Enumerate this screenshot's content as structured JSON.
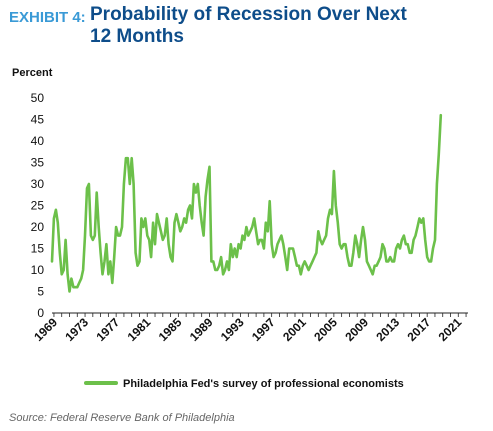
{
  "header": {
    "exhibit_label": "EXHIBIT 4:",
    "title": "Probability of Recession Over Next 12 Months"
  },
  "source": "Source: Federal Reserve Bank of Philadelphia",
  "colors": {
    "line": "#6cc04a",
    "exhibit": "#3a9ad6",
    "title": "#0e4d8a",
    "axis": "#222222"
  },
  "chart_data": {
    "type": "line",
    "ylabel": "Percent",
    "xlabel": "",
    "ylim": [
      0,
      50
    ],
    "yticks": [
      0,
      5,
      10,
      15,
      20,
      25,
      30,
      35,
      40,
      45,
      50
    ],
    "xlim": [
      1968.75,
      2022.25
    ],
    "xticks": [
      1969,
      1973,
      1977,
      1981,
      1985,
      1989,
      1993,
      1997,
      2001,
      2005,
      2009,
      2013,
      2017,
      2021
    ],
    "grid": false,
    "legend": "bottom",
    "series": [
      {
        "name": "Philadelphia Fed's survey of professional economists",
        "points": [
          [
            1968.75,
            12
          ],
          [
            1969.0,
            22
          ],
          [
            1969.25,
            24
          ],
          [
            1969.5,
            21
          ],
          [
            1969.75,
            14
          ],
          [
            1970.0,
            9
          ],
          [
            1970.25,
            10
          ],
          [
            1970.5,
            17
          ],
          [
            1970.75,
            9
          ],
          [
            1971.0,
            5
          ],
          [
            1971.25,
            8
          ],
          [
            1971.5,
            6
          ],
          [
            1971.75,
            6
          ],
          [
            1972.0,
            6
          ],
          [
            1972.25,
            7
          ],
          [
            1972.5,
            8
          ],
          [
            1972.75,
            10
          ],
          [
            1973.0,
            18
          ],
          [
            1973.25,
            29
          ],
          [
            1973.5,
            30
          ],
          [
            1973.75,
            18
          ],
          [
            1974.0,
            17
          ],
          [
            1974.25,
            18
          ],
          [
            1974.5,
            28
          ],
          [
            1974.75,
            20
          ],
          [
            1975.0,
            14
          ],
          [
            1975.25,
            9
          ],
          [
            1975.5,
            12
          ],
          [
            1975.75,
            16
          ],
          [
            1976.0,
            9
          ],
          [
            1976.25,
            12
          ],
          [
            1976.5,
            7
          ],
          [
            1976.75,
            13
          ],
          [
            1977.0,
            20
          ],
          [
            1977.25,
            18
          ],
          [
            1977.5,
            18
          ],
          [
            1977.75,
            20
          ],
          [
            1978.0,
            30
          ],
          [
            1978.25,
            36
          ],
          [
            1978.5,
            36
          ],
          [
            1978.75,
            30
          ],
          [
            1979.0,
            36
          ],
          [
            1979.25,
            30
          ],
          [
            1979.5,
            14
          ],
          [
            1979.75,
            11
          ],
          [
            1980.0,
            12
          ],
          [
            1980.25,
            22
          ],
          [
            1980.5,
            20
          ],
          [
            1980.75,
            22
          ],
          [
            1981.0,
            18
          ],
          [
            1981.25,
            17
          ],
          [
            1981.5,
            13
          ],
          [
            1981.75,
            21
          ],
          [
            1982.0,
            16
          ],
          [
            1982.25,
            23
          ],
          [
            1982.5,
            21
          ],
          [
            1982.75,
            19
          ],
          [
            1983.0,
            17
          ],
          [
            1983.25,
            18
          ],
          [
            1983.5,
            22
          ],
          [
            1983.75,
            16
          ],
          [
            1984.0,
            13
          ],
          [
            1984.25,
            12
          ],
          [
            1984.5,
            21
          ],
          [
            1984.75,
            23
          ],
          [
            1985.0,
            21
          ],
          [
            1985.25,
            19
          ],
          [
            1985.5,
            20
          ],
          [
            1985.75,
            22
          ],
          [
            1986.0,
            21
          ],
          [
            1986.25,
            24
          ],
          [
            1986.5,
            25
          ],
          [
            1986.75,
            22
          ],
          [
            1987.0,
            30
          ],
          [
            1987.25,
            28
          ],
          [
            1987.5,
            30
          ],
          [
            1987.75,
            25
          ],
          [
            1988.0,
            21
          ],
          [
            1988.25,
            18
          ],
          [
            1988.5,
            27
          ],
          [
            1988.75,
            31
          ],
          [
            1989.0,
            34
          ],
          [
            1989.25,
            12
          ],
          [
            1989.5,
            12
          ],
          [
            1989.75,
            10
          ],
          [
            1990.0,
            10
          ],
          [
            1990.25,
            11
          ],
          [
            1990.5,
            13
          ],
          [
            1990.75,
            9
          ],
          [
            1991.0,
            10
          ],
          [
            1991.25,
            12
          ],
          [
            1991.5,
            10
          ],
          [
            1991.75,
            16
          ],
          [
            1992.0,
            13
          ],
          [
            1992.25,
            15
          ],
          [
            1992.5,
            13
          ],
          [
            1992.75,
            16
          ],
          [
            1993.0,
            15
          ],
          [
            1993.25,
            18
          ],
          [
            1993.5,
            17
          ],
          [
            1993.75,
            20
          ],
          [
            1994.0,
            18
          ],
          [
            1994.25,
            19
          ],
          [
            1994.5,
            20
          ],
          [
            1994.75,
            22
          ],
          [
            1995.0,
            19
          ],
          [
            1995.25,
            16
          ],
          [
            1995.5,
            17
          ],
          [
            1995.75,
            17
          ],
          [
            1996.0,
            15
          ],
          [
            1996.25,
            21
          ],
          [
            1996.5,
            19
          ],
          [
            1996.75,
            26
          ],
          [
            1997.0,
            16
          ],
          [
            1997.25,
            13
          ],
          [
            1997.5,
            14
          ],
          [
            1997.75,
            16
          ],
          [
            1998.0,
            17
          ],
          [
            1998.25,
            18
          ],
          [
            1998.5,
            16
          ],
          [
            1998.75,
            13
          ],
          [
            1999.0,
            10
          ],
          [
            1999.25,
            15
          ],
          [
            1999.5,
            15
          ],
          [
            1999.75,
            15
          ],
          [
            2000.0,
            13
          ],
          [
            2000.25,
            11
          ],
          [
            2000.5,
            11
          ],
          [
            2000.75,
            9
          ],
          [
            2001.0,
            11
          ],
          [
            2001.25,
            12
          ],
          [
            2001.5,
            11
          ],
          [
            2001.75,
            10
          ],
          [
            2002.0,
            11
          ],
          [
            2002.25,
            12
          ],
          [
            2002.5,
            13
          ],
          [
            2002.75,
            14
          ],
          [
            2003.0,
            19
          ],
          [
            2003.25,
            17
          ],
          [
            2003.5,
            16
          ],
          [
            2003.75,
            17
          ],
          [
            2004.0,
            18
          ],
          [
            2004.25,
            22
          ],
          [
            2004.5,
            24
          ],
          [
            2004.75,
            23
          ],
          [
            2005.0,
            33
          ],
          [
            2005.25,
            25
          ],
          [
            2005.5,
            21
          ],
          [
            2005.75,
            16
          ],
          [
            2006.0,
            15
          ],
          [
            2006.25,
            16
          ],
          [
            2006.5,
            16
          ],
          [
            2006.75,
            13
          ],
          [
            2007.0,
            11
          ],
          [
            2007.25,
            11
          ],
          [
            2007.5,
            14
          ],
          [
            2007.75,
            18
          ],
          [
            2008.0,
            16
          ],
          [
            2008.25,
            13
          ],
          [
            2008.5,
            17
          ],
          [
            2008.75,
            20
          ],
          [
            2009.0,
            17
          ],
          [
            2009.25,
            12
          ],
          [
            2009.5,
            11
          ],
          [
            2009.75,
            10
          ],
          [
            2010.0,
            9
          ],
          [
            2010.25,
            11
          ],
          [
            2010.5,
            11
          ],
          [
            2010.75,
            12
          ],
          [
            2011.0,
            13
          ],
          [
            2011.25,
            16
          ],
          [
            2011.5,
            15
          ],
          [
            2011.75,
            12
          ],
          [
            2012.0,
            12
          ],
          [
            2012.25,
            13
          ],
          [
            2012.5,
            12
          ],
          [
            2012.75,
            12
          ],
          [
            2013.0,
            15
          ],
          [
            2013.25,
            16
          ],
          [
            2013.5,
            15
          ],
          [
            2013.75,
            17
          ],
          [
            2014.0,
            18
          ],
          [
            2014.25,
            16
          ],
          [
            2014.5,
            16
          ],
          [
            2014.75,
            14
          ],
          [
            2015.0,
            14
          ],
          [
            2015.25,
            17
          ],
          [
            2015.5,
            18
          ],
          [
            2015.75,
            20
          ],
          [
            2016.0,
            22
          ],
          [
            2016.25,
            21
          ],
          [
            2016.5,
            22
          ],
          [
            2016.75,
            17
          ],
          [
            2017.0,
            13
          ],
          [
            2017.25,
            12
          ],
          [
            2017.5,
            12
          ],
          [
            2017.75,
            15
          ],
          [
            2018.0,
            17
          ],
          [
            2018.25,
            30
          ],
          [
            2018.5,
            37
          ],
          [
            2018.75,
            46
          ]
        ]
      }
    ]
  }
}
